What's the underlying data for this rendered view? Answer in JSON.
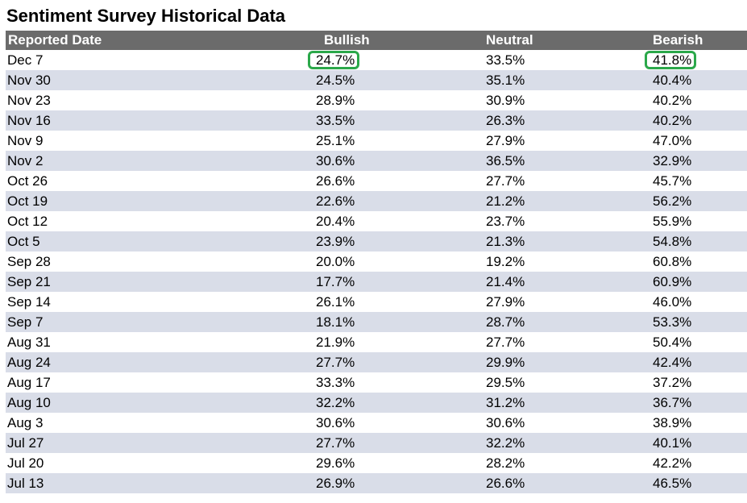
{
  "title": "Sentiment Survey Historical Data",
  "colors": {
    "header_bg": "#6b6b6b",
    "header_text": "#ffffff",
    "stripe": "#d9dde8",
    "highlight": "#2ba84a"
  },
  "chart_data": {
    "type": "table",
    "title": "Sentiment Survey Historical Data",
    "columns": [
      "Reported Date",
      "Bullish",
      "Neutral",
      "Bearish"
    ],
    "rows": [
      {
        "date": "Dec 7",
        "bullish": "24.7%",
        "neutral": "33.5%",
        "bearish": "41.8%"
      },
      {
        "date": "Nov 30",
        "bullish": "24.5%",
        "neutral": "35.1%",
        "bearish": "40.4%"
      },
      {
        "date": "Nov 23",
        "bullish": "28.9%",
        "neutral": "30.9%",
        "bearish": "40.2%"
      },
      {
        "date": "Nov 16",
        "bullish": "33.5%",
        "neutral": "26.3%",
        "bearish": "40.2%"
      },
      {
        "date": "Nov 9",
        "bullish": "25.1%",
        "neutral": "27.9%",
        "bearish": "47.0%"
      },
      {
        "date": "Nov 2",
        "bullish": "30.6%",
        "neutral": "36.5%",
        "bearish": "32.9%"
      },
      {
        "date": "Oct 26",
        "bullish": "26.6%",
        "neutral": "27.7%",
        "bearish": "45.7%"
      },
      {
        "date": "Oct 19",
        "bullish": "22.6%",
        "neutral": "21.2%",
        "bearish": "56.2%"
      },
      {
        "date": "Oct 12",
        "bullish": "20.4%",
        "neutral": "23.7%",
        "bearish": "55.9%"
      },
      {
        "date": "Oct 5",
        "bullish": "23.9%",
        "neutral": "21.3%",
        "bearish": "54.8%"
      },
      {
        "date": "Sep 28",
        "bullish": "20.0%",
        "neutral": "19.2%",
        "bearish": "60.8%"
      },
      {
        "date": "Sep 21",
        "bullish": "17.7%",
        "neutral": "21.4%",
        "bearish": "60.9%"
      },
      {
        "date": "Sep 14",
        "bullish": "26.1%",
        "neutral": "27.9%",
        "bearish": "46.0%"
      },
      {
        "date": "Sep 7",
        "bullish": "18.1%",
        "neutral": "28.7%",
        "bearish": "53.3%"
      },
      {
        "date": "Aug 31",
        "bullish": "21.9%",
        "neutral": "27.7%",
        "bearish": "50.4%"
      },
      {
        "date": "Aug 24",
        "bullish": "27.7%",
        "neutral": "29.9%",
        "bearish": "42.4%"
      },
      {
        "date": "Aug 17",
        "bullish": "33.3%",
        "neutral": "29.5%",
        "bearish": "37.2%"
      },
      {
        "date": "Aug 10",
        "bullish": "32.2%",
        "neutral": "31.2%",
        "bearish": "36.7%"
      },
      {
        "date": "Aug 3",
        "bullish": "30.6%",
        "neutral": "30.6%",
        "bearish": "38.9%"
      },
      {
        "date": "Jul 27",
        "bullish": "27.7%",
        "neutral": "32.2%",
        "bearish": "40.1%"
      },
      {
        "date": "Jul 20",
        "bullish": "29.6%",
        "neutral": "28.2%",
        "bearish": "42.2%"
      },
      {
        "date": "Jul 13",
        "bullish": "26.9%",
        "neutral": "26.6%",
        "bearish": "46.5%"
      }
    ],
    "highlighted_cells": [
      {
        "row": 0,
        "column": "bullish"
      },
      {
        "row": 0,
        "column": "bearish"
      }
    ]
  }
}
